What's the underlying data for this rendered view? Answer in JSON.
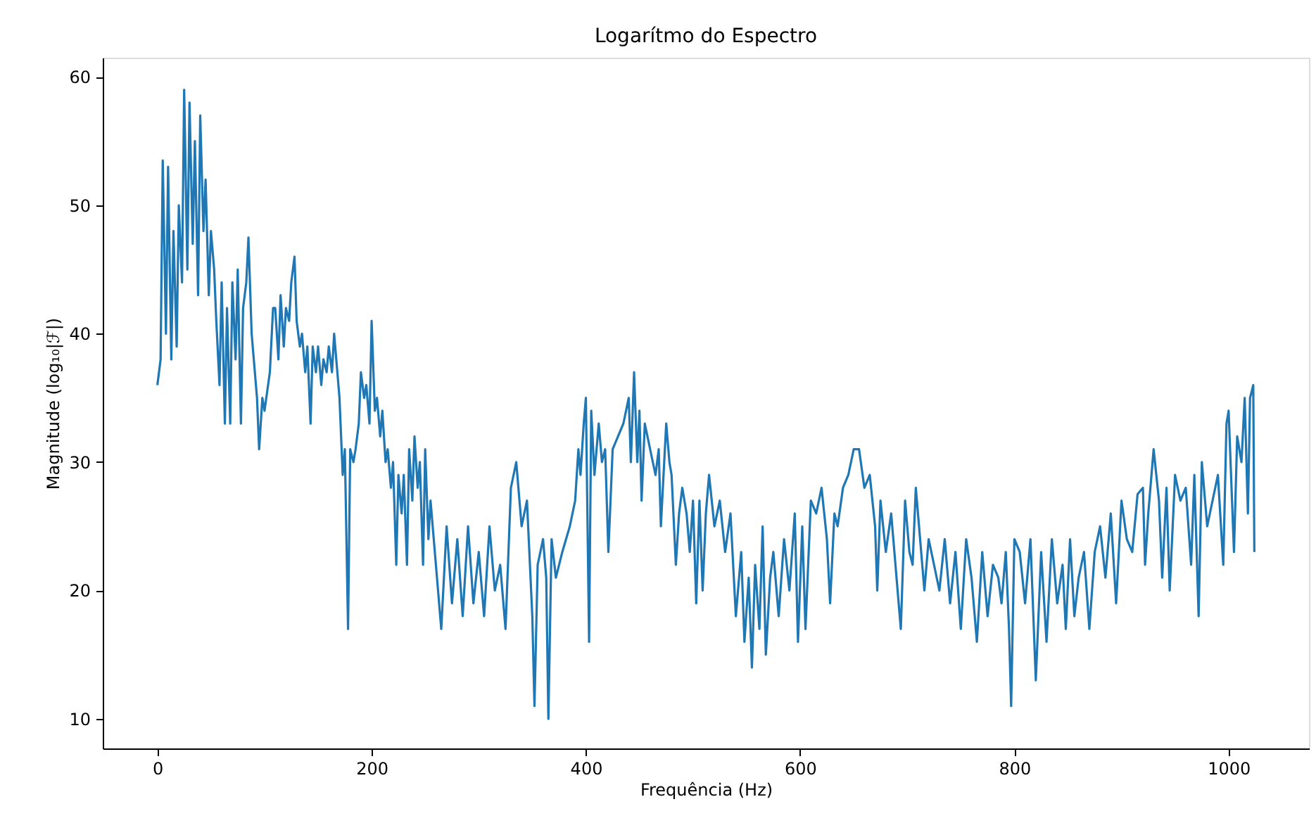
{
  "chart_data": {
    "type": "line",
    "title": "Logarítmo do Espectro",
    "xlabel": "Frequência (Hz)",
    "ylabel": "Magnitude (log₁₀|ℱ|)",
    "xlim": [
      -51,
      1075
    ],
    "ylim": [
      7.7,
      61.5
    ],
    "xticks": [
      0,
      200,
      400,
      600,
      800,
      1000
    ],
    "yticks": [
      10,
      20,
      30,
      40,
      50,
      60
    ],
    "grid": false,
    "marker": "none",
    "line_style": "solid",
    "series": [
      {
        "color": "#1f77b4",
        "x": [
          0,
          3,
          5,
          8,
          10,
          13,
          15,
          18,
          20,
          23,
          25,
          28,
          30,
          33,
          35,
          38,
          40,
          43,
          45,
          48,
          50,
          53,
          55,
          58,
          60,
          63,
          65,
          68,
          70,
          73,
          75,
          78,
          80,
          83,
          85,
          88,
          90,
          93,
          95,
          98,
          100,
          105,
          108,
          110,
          113,
          115,
          118,
          120,
          123,
          125,
          128,
          130,
          133,
          135,
          138,
          140,
          143,
          145,
          148,
          150,
          153,
          155,
          158,
          160,
          163,
          165,
          168,
          170,
          173,
          175,
          178,
          180,
          183,
          185,
          188,
          190,
          193,
          195,
          198,
          200,
          203,
          205,
          208,
          210,
          213,
          215,
          218,
          220,
          223,
          225,
          228,
          230,
          233,
          235,
          238,
          240,
          243,
          245,
          248,
          250,
          253,
          255,
          260,
          265,
          270,
          275,
          280,
          285,
          290,
          295,
          300,
          305,
          310,
          315,
          320,
          325,
          330,
          335,
          340,
          345,
          350,
          352,
          355,
          360,
          363,
          365,
          368,
          372,
          378,
          385,
          390,
          393,
          395,
          398,
          400,
          403,
          405,
          408,
          412,
          415,
          418,
          421,
          425,
          430,
          435,
          440,
          442,
          445,
          448,
          450,
          452,
          455,
          460,
          465,
          468,
          470,
          475,
          478,
          480,
          484,
          487,
          490,
          494,
          497,
          500,
          503,
          506,
          509,
          512,
          515,
          520,
          525,
          530,
          535,
          540,
          545,
          548,
          552,
          555,
          558,
          562,
          565,
          568,
          572,
          575,
          580,
          585,
          590,
          595,
          598,
          602,
          605,
          610,
          615,
          620,
          625,
          628,
          632,
          635,
          640,
          645,
          650,
          655,
          660,
          665,
          670,
          672,
          675,
          680,
          685,
          690,
          694,
          698,
          702,
          705,
          708,
          712,
          716,
          720,
          725,
          730,
          735,
          740,
          745,
          750,
          755,
          760,
          765,
          770,
          775,
          780,
          785,
          788,
          792,
          795,
          797,
          800,
          805,
          810,
          815,
          820,
          825,
          830,
          835,
          840,
          845,
          848,
          852,
          856,
          860,
          865,
          870,
          875,
          880,
          885,
          890,
          895,
          900,
          905,
          910,
          915,
          920,
          922,
          925,
          930,
          935,
          938,
          942,
          945,
          950,
          955,
          960,
          965,
          968,
          972,
          975,
          980,
          985,
          990,
          995,
          998,
          1000,
          1005,
          1008,
          1012,
          1015,
          1018,
          1020,
          1023,
          1024
        ],
        "values": [
          36,
          38,
          53.5,
          40,
          53,
          38,
          48,
          39,
          50,
          44,
          59,
          45,
          58,
          47,
          55,
          43,
          57,
          48,
          52,
          43,
          48,
          45,
          41,
          36,
          44,
          33,
          42,
          33,
          44,
          38,
          45,
          33,
          42,
          44,
          47.5,
          40,
          38,
          35,
          31,
          35,
          34,
          37,
          42,
          42,
          38,
          43,
          39,
          42,
          41,
          44,
          46,
          41,
          39,
          40,
          37,
          39,
          33,
          39,
          37,
          39,
          36,
          38,
          37,
          39,
          37,
          40,
          37,
          35,
          29,
          31,
          17,
          31,
          30,
          31,
          33,
          37,
          35,
          36,
          33,
          41,
          34,
          35,
          32,
          34,
          30,
          31,
          28,
          30,
          22,
          29,
          26,
          29,
          22,
          31,
          27,
          32,
          28,
          30,
          22,
          31,
          24,
          27,
          22,
          17,
          25,
          19,
          24,
          18,
          25,
          19,
          23,
          18,
          25,
          20,
          22,
          17,
          28,
          30,
          25,
          27,
          18,
          11,
          22,
          24,
          21,
          10,
          24,
          21,
          23,
          25,
          27,
          31,
          29,
          33,
          35,
          16,
          34,
          29,
          33,
          30,
          31,
          23,
          31,
          32,
          33,
          35,
          30,
          37,
          30,
          34,
          27,
          33,
          31,
          29,
          31,
          25,
          33,
          30,
          29,
          22,
          26,
          28,
          26,
          23,
          27,
          19,
          27,
          20,
          26,
          29,
          25,
          27,
          23,
          26,
          18,
          23,
          16,
          21,
          14,
          22,
          17,
          25,
          15,
          21,
          23,
          18,
          24,
          20,
          26,
          16,
          25,
          17,
          27,
          26,
          28,
          24,
          19,
          26,
          25,
          28,
          29,
          31,
          31,
          28,
          29,
          25,
          20,
          27,
          23,
          26,
          21,
          17,
          27,
          23,
          22,
          28,
          24,
          20,
          24,
          22,
          20,
          24,
          19,
          23,
          17,
          24,
          21,
          16,
          23,
          18,
          22,
          21,
          19,
          23,
          17,
          11,
          24,
          23,
          19,
          24,
          13,
          23,
          16,
          24,
          19,
          22,
          17,
          24,
          18,
          21,
          23,
          17,
          23,
          25,
          21,
          26,
          19,
          27,
          24,
          23,
          27.5,
          28,
          22,
          26,
          31,
          27,
          21,
          28,
          20,
          29,
          27,
          28,
          22,
          29,
          18,
          30,
          25,
          27,
          29,
          22,
          33,
          34,
          23,
          32,
          30,
          35,
          26,
          35,
          36,
          23
        ]
      }
    ]
  }
}
